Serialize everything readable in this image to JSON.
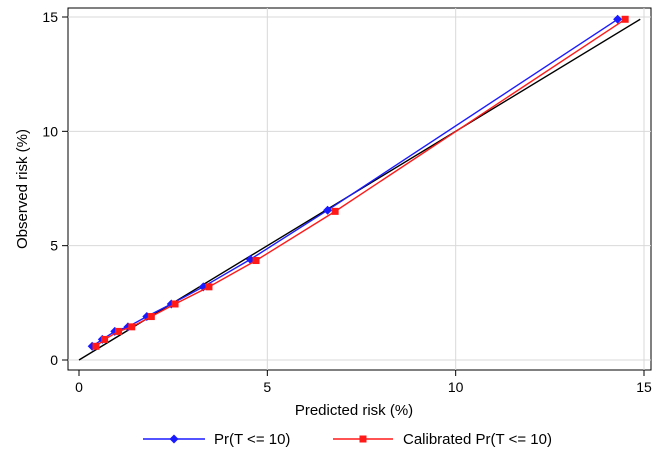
{
  "chart_data": {
    "type": "line",
    "title": "",
    "xlabel": "Predicted risk (%)",
    "ylabel": "Observed risk (%)",
    "xlim": [
      -0.5,
      15.2
    ],
    "ylim": [
      -0.4,
      15.2
    ],
    "xticks": [
      0,
      5,
      10,
      15
    ],
    "yticks": [
      0,
      5,
      10,
      15
    ],
    "grid": true,
    "legend_position": "bottom",
    "reference_line": {
      "x": [
        0,
        14.9
      ],
      "y": [
        0,
        14.9
      ],
      "color": "#000000"
    },
    "series": [
      {
        "name": "Pr(T <= 10)",
        "color": "#1a1aff",
        "marker": "diamond",
        "x": [
          0.35,
          0.62,
          0.95,
          1.3,
          1.8,
          2.45,
          3.3,
          4.55,
          6.6,
          14.3
        ],
        "y": [
          0.6,
          0.9,
          1.25,
          1.45,
          1.9,
          2.45,
          3.2,
          4.4,
          6.55,
          14.9
        ]
      },
      {
        "name": "Calibrated Pr(T <= 10)",
        "color": "#ff1a1a",
        "marker": "square",
        "x": [
          0.45,
          0.68,
          1.05,
          1.4,
          1.92,
          2.55,
          3.45,
          4.7,
          6.8,
          14.5
        ],
        "y": [
          0.6,
          0.9,
          1.25,
          1.45,
          1.9,
          2.45,
          3.2,
          4.35,
          6.5,
          14.9
        ]
      }
    ]
  }
}
